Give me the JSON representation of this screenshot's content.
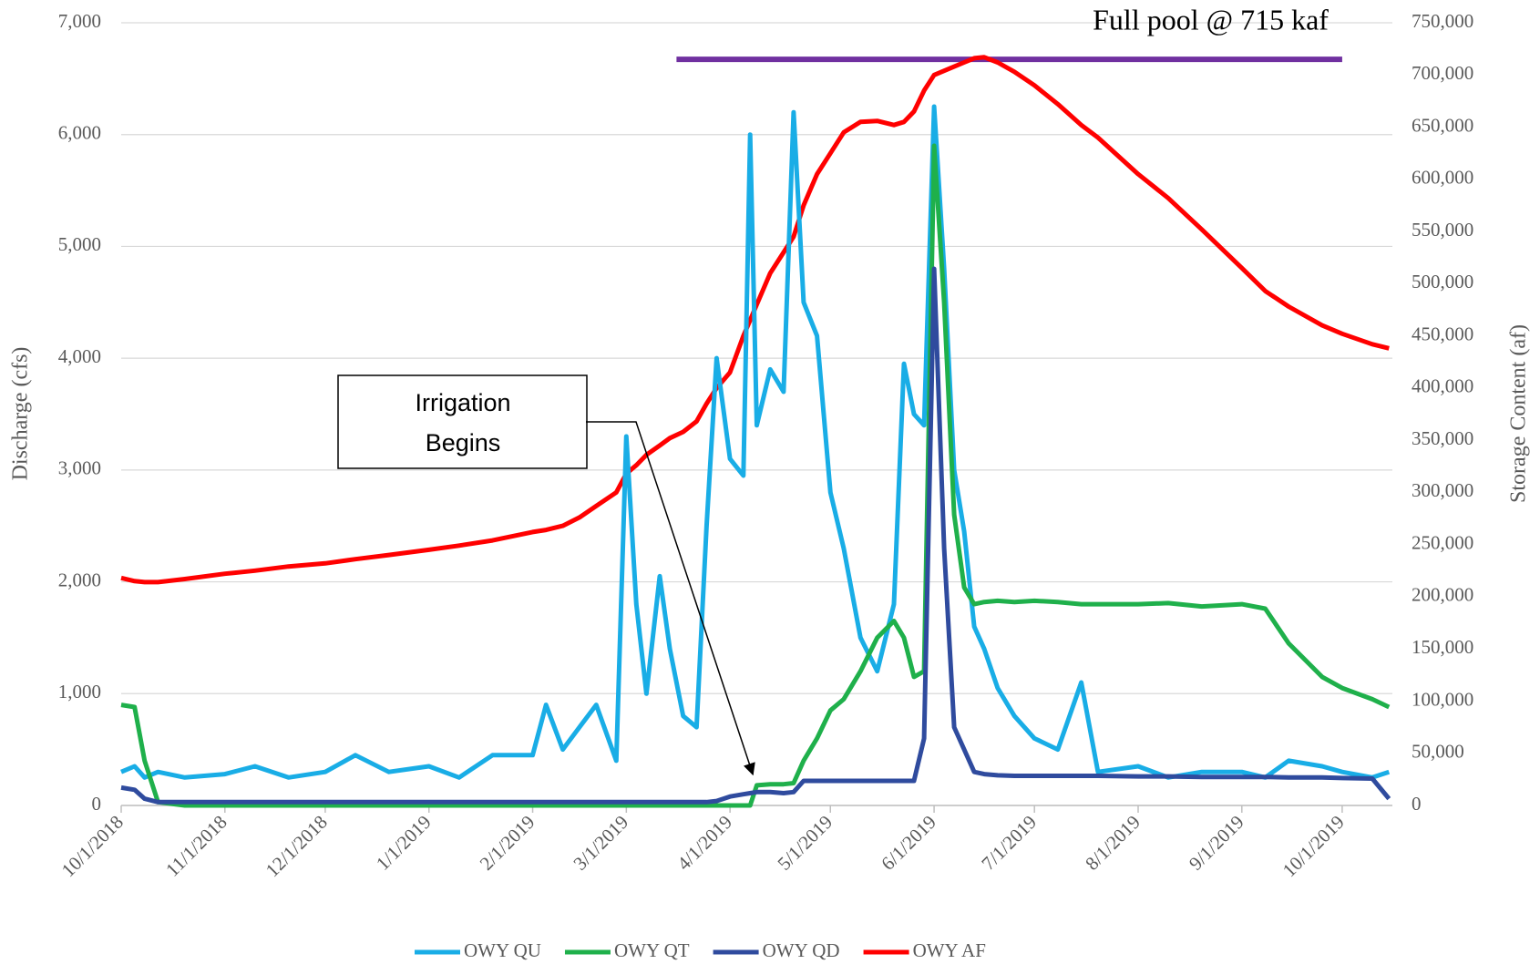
{
  "chart_data": {
    "type": "line",
    "x": [
      "2018-10-01",
      "2018-10-05",
      "2018-10-08",
      "2018-10-12",
      "2018-10-20",
      "2018-11-01",
      "2018-11-10",
      "2018-11-20",
      "2018-12-01",
      "2018-12-10",
      "2018-12-20",
      "2019-01-01",
      "2019-01-10",
      "2019-01-20",
      "2019-02-01",
      "2019-02-05",
      "2019-02-10",
      "2019-02-15",
      "2019-02-20",
      "2019-02-26",
      "2019-03-01",
      "2019-03-04",
      "2019-03-07",
      "2019-03-11",
      "2019-03-14",
      "2019-03-18",
      "2019-03-22",
      "2019-03-25",
      "2019-03-28",
      "2019-04-01",
      "2019-04-05",
      "2019-04-07",
      "2019-04-09",
      "2019-04-13",
      "2019-04-17",
      "2019-04-20",
      "2019-04-23",
      "2019-04-27",
      "2019-05-01",
      "2019-05-05",
      "2019-05-10",
      "2019-05-15",
      "2019-05-20",
      "2019-05-23",
      "2019-05-26",
      "2019-05-29",
      "2019-06-01",
      "2019-06-04",
      "2019-06-07",
      "2019-06-10",
      "2019-06-13",
      "2019-06-16",
      "2019-06-20",
      "2019-06-25",
      "2019-07-01",
      "2019-07-08",
      "2019-07-15",
      "2019-07-20",
      "2019-08-01",
      "2019-08-10",
      "2019-08-20",
      "2019-09-01",
      "2019-09-08",
      "2019-09-15",
      "2019-09-25",
      "2019-10-01",
      "2019-10-10",
      "2019-10-15"
    ],
    "series": [
      {
        "name": "OWY QU",
        "color": "#19ade6",
        "axis": "y",
        "values": [
          300,
          350,
          250,
          300,
          250,
          280,
          350,
          250,
          300,
          450,
          300,
          350,
          250,
          450,
          450,
          900,
          500,
          700,
          900,
          400,
          3300,
          1800,
          1000,
          2050,
          1400,
          800,
          700,
          2500,
          4000,
          3100,
          2950,
          6000,
          3400,
          3900,
          3700,
          6200,
          4500,
          4200,
          2800,
          2300,
          1500,
          1200,
          1800,
          3950,
          3500,
          3400,
          6250,
          4800,
          3000,
          2450,
          1600,
          1400,
          1050,
          800,
          600,
          500,
          1100,
          300,
          350,
          250,
          300,
          300,
          250,
          400,
          350,
          300,
          250,
          300
        ]
      },
      {
        "name": "OWY QT",
        "color": "#1fb04b",
        "axis": "y",
        "values": [
          900,
          880,
          400,
          30,
          0,
          0,
          0,
          0,
          0,
          0,
          0,
          0,
          0,
          0,
          0,
          0,
          0,
          0,
          0,
          0,
          0,
          0,
          0,
          0,
          0,
          0,
          0,
          0,
          0,
          0,
          0,
          0,
          180,
          190,
          190,
          200,
          400,
          600,
          850,
          950,
          1200,
          1500,
          1650,
          1500,
          1150,
          1200,
          5900,
          4500,
          2600,
          1950,
          1800,
          1820,
          1830,
          1820,
          1830,
          1820,
          1800,
          1800,
          1800,
          1810,
          1780,
          1800,
          1760,
          1450,
          1150,
          1050,
          950,
          880
        ]
      },
      {
        "name": "OWY QD",
        "color": "#2f4b9e",
        "axis": "y",
        "values": [
          160,
          140,
          60,
          30,
          30,
          30,
          30,
          30,
          30,
          30,
          30,
          30,
          30,
          30,
          30,
          30,
          30,
          30,
          30,
          30,
          30,
          30,
          30,
          30,
          30,
          30,
          30,
          30,
          40,
          80,
          100,
          110,
          120,
          120,
          110,
          120,
          220,
          220,
          220,
          220,
          220,
          220,
          220,
          220,
          220,
          600,
          4800,
          2300,
          700,
          500,
          300,
          280,
          270,
          265,
          265,
          265,
          265,
          265,
          260,
          260,
          255,
          255,
          255,
          250,
          250,
          245,
          240,
          60
        ]
      },
      {
        "name": "OWY AF",
        "color": "#ff0000",
        "axis": "y2",
        "values": [
          218000,
          215000,
          214000,
          214000,
          217000,
          222000,
          225000,
          229000,
          232000,
          236000,
          240000,
          245000,
          249000,
          254000,
          262000,
          264000,
          268000,
          276000,
          287000,
          300000,
          318000,
          326000,
          336000,
          345000,
          352000,
          358000,
          368000,
          385000,
          400000,
          415000,
          450000,
          465000,
          480000,
          510000,
          530000,
          545000,
          575000,
          605000,
          625000,
          645000,
          655000,
          656000,
          652000,
          655000,
          665000,
          685000,
          700000,
          704000,
          708000,
          712000,
          716000,
          717000,
          712000,
          703000,
          690000,
          672000,
          652000,
          640000,
          605000,
          582000,
          552000,
          515000,
          493000,
          478000,
          460000,
          452000,
          442000,
          438000
        ]
      }
    ],
    "xlim": [
      "2018-10-01",
      "2019-10-16"
    ],
    "xticks": [
      {
        "value": "2018-10-01",
        "label": "10/1/2018"
      },
      {
        "value": "2018-11-01",
        "label": "11/1/2018"
      },
      {
        "value": "2018-12-01",
        "label": "12/1/2018"
      },
      {
        "value": "2019-01-01",
        "label": "1/1/2019"
      },
      {
        "value": "2019-02-01",
        "label": "2/1/2019"
      },
      {
        "value": "2019-03-01",
        "label": "3/1/2019"
      },
      {
        "value": "2019-04-01",
        "label": "4/1/2019"
      },
      {
        "value": "2019-05-01",
        "label": "5/1/2019"
      },
      {
        "value": "2019-06-01",
        "label": "6/1/2019"
      },
      {
        "value": "2019-07-01",
        "label": "7/1/2019"
      },
      {
        "value": "2019-08-01",
        "label": "8/1/2019"
      },
      {
        "value": "2019-09-01",
        "label": "9/1/2019"
      },
      {
        "value": "2019-10-01",
        "label": "10/1/2019"
      }
    ],
    "ylim": [
      0,
      7000
    ],
    "yticks": [
      0,
      {
        "value": 1000,
        "label": "1,000"
      },
      {
        "value": 2000,
        "label": "2,000"
      },
      {
        "value": 3000,
        "label": "3,000"
      },
      {
        "value": 4000,
        "label": "4,000"
      },
      {
        "value": 5000,
        "label": "5,000"
      },
      {
        "value": 6000,
        "label": "6,000"
      },
      {
        "value": 7000,
        "label": "7,000"
      }
    ],
    "y2lim": [
      0,
      750000
    ],
    "y2ticks": [
      0,
      {
        "value": 50000,
        "label": "50,000"
      },
      {
        "value": 100000,
        "label": "100,000"
      },
      {
        "value": 150000,
        "label": "150,000"
      },
      {
        "value": 200000,
        "label": "200,000"
      },
      {
        "value": 250000,
        "label": "250,000"
      },
      {
        "value": 300000,
        "label": "300,000"
      },
      {
        "value": 350000,
        "label": "350,000"
      },
      {
        "value": 400000,
        "label": "400,000"
      },
      {
        "value": 450000,
        "label": "450,000"
      },
      {
        "value": 500000,
        "label": "500,000"
      },
      {
        "value": 550000,
        "label": "550,000"
      },
      {
        "value": 600000,
        "label": "600,000"
      },
      {
        "value": 650000,
        "label": "650,000"
      },
      {
        "value": 700000,
        "label": "700,000"
      },
      {
        "value": 750000,
        "label": "750,000"
      }
    ],
    "ylabel": "Discharge (cfs)",
    "y2label": "Storage Content (af)",
    "grid": true,
    "legend": "bottom",
    "reference": {
      "label": "Full pool @ 715 kaf",
      "value": 715000,
      "axis": "y2",
      "color": "#7030a0",
      "x": [
        "2019-03-16",
        "2019-10-01"
      ]
    },
    "annotation": {
      "lines": [
        "Irrigation",
        "Begins"
      ],
      "x": "2019-04-10",
      "y": 180
    }
  }
}
